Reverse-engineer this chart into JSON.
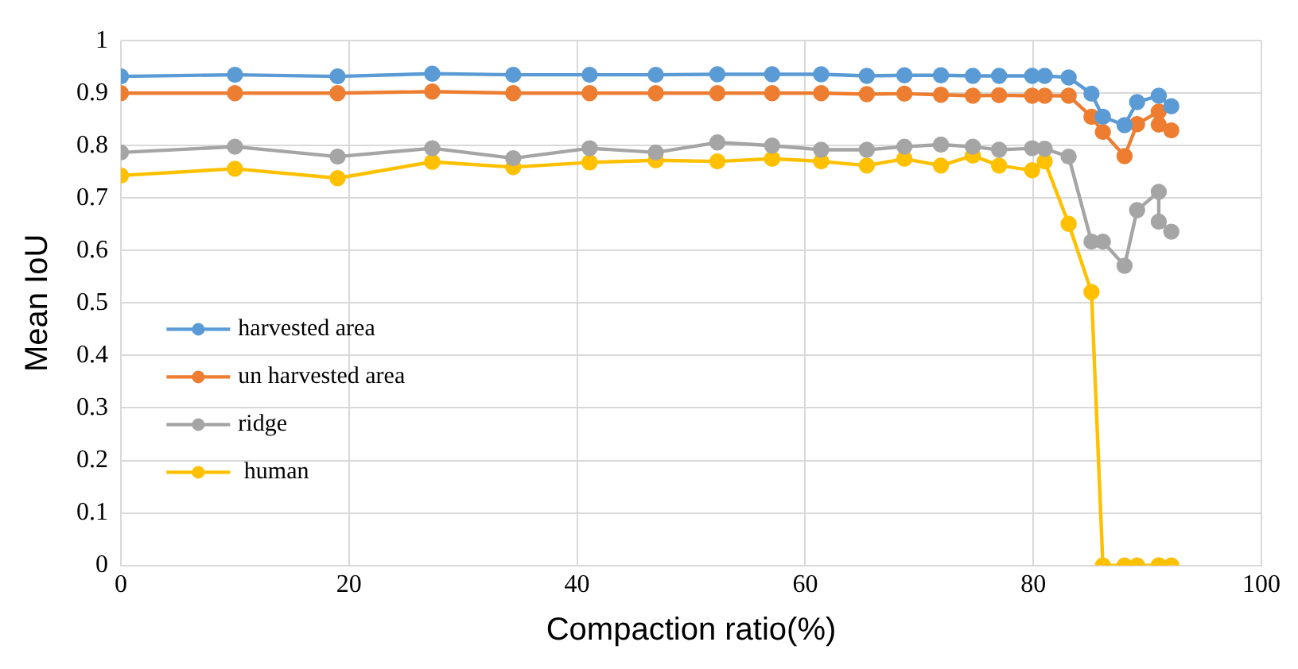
{
  "chart_data": {
    "type": "line",
    "xlabel": "Compaction ratio(%)",
    "ylabel": "Mean IoU",
    "x": [
      0,
      10,
      19,
      27.3,
      34.4,
      41.1,
      46.9,
      52.3,
      57.1,
      61.4,
      65.4,
      68.7,
      71.9,
      74.7,
      77,
      79.9,
      81,
      83.1,
      85.1,
      86.1,
      88,
      89.1,
      91,
      91,
      92.1
    ],
    "series": [
      {
        "name": "harvested area",
        "color": "#5b9bd5",
        "values": [
          0.932,
          0.935,
          0.932,
          0.937,
          0.935,
          0.935,
          0.935,
          0.936,
          0.936,
          0.936,
          0.933,
          0.934,
          0.934,
          0.933,
          0.933,
          0.933,
          0.933,
          0.93,
          0.899,
          0.855,
          0.839,
          0.883,
          null,
          0.895,
          0.875
        ]
      },
      {
        "name": "un harvested area",
        "color": "#ed7d31",
        "values": [
          0.9,
          0.9,
          0.9,
          0.903,
          0.9,
          0.9,
          0.9,
          0.9,
          0.9,
          0.9,
          0.898,
          0.899,
          0.897,
          0.895,
          0.896,
          0.895,
          0.895,
          0.895,
          0.855,
          0.826,
          0.78,
          0.841,
          0.865,
          0.84,
          0.829
        ]
      },
      {
        "name": "ridge",
        "color": "#a5a5a5",
        "values": [
          0.787,
          0.798,
          0.779,
          0.795,
          0.776,
          0.795,
          0.787,
          0.806,
          0.8,
          0.792,
          0.792,
          0.798,
          0.802,
          0.798,
          0.792,
          0.795,
          0.794,
          0.779,
          0.617,
          0.617,
          0.571,
          0.677,
          0.712,
          0.655,
          0.636
        ]
      },
      {
        "name": " human",
        "color": "#ffc000",
        "values": [
          0.743,
          0.756,
          0.738,
          0.769,
          0.759,
          0.768,
          0.772,
          0.77,
          0.775,
          0.77,
          0.762,
          0.775,
          0.762,
          0.781,
          0.762,
          0.753,
          0.77,
          0.651,
          0.521,
          0,
          0,
          0,
          0,
          0,
          0
        ]
      }
    ],
    "xlim": [
      0,
      100
    ],
    "xticks": [
      0,
      20,
      40,
      60,
      80,
      100
    ],
    "ylim": [
      0,
      1
    ],
    "yticks": [
      0,
      0.1,
      0.2,
      0.3,
      0.4,
      0.5,
      0.6,
      0.7,
      0.8,
      0.9,
      1
    ],
    "grid": true,
    "legend": "left",
    "marker": "circle",
    "line_style": "solid"
  }
}
